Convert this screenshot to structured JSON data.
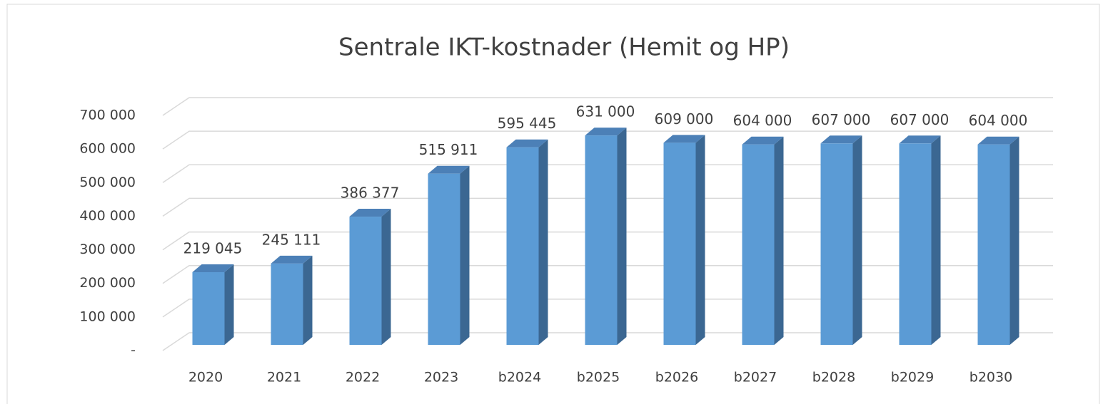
{
  "chart_data": {
    "type": "bar",
    "title": "Sentrale IKT-kostnader (Hemit og HP)",
    "categories": [
      "2020",
      "2021",
      "2022",
      "2023",
      "b2024",
      "b2025",
      "b2026",
      "b2027",
      "b2028",
      "b2029",
      "b2030"
    ],
    "values": [
      219045,
      245111,
      386377,
      515911,
      595445,
      631000,
      609000,
      604000,
      607000,
      607000,
      604000
    ],
    "value_labels": [
      "219 045",
      "245 111",
      "386 377",
      "515 911",
      "595 445",
      "631 000",
      "609 000",
      "604 000",
      "607 000",
      "607 000",
      "604 000"
    ],
    "color": "#5b9bd5",
    "ylim": [
      0,
      700000
    ],
    "yticks": [
      {
        "value": 0,
        "label": "-"
      },
      {
        "value": 100000,
        "label": "100 000"
      },
      {
        "value": 200000,
        "label": "200 000"
      },
      {
        "value": 300000,
        "label": "300 000"
      },
      {
        "value": 400000,
        "label": "400 000"
      },
      {
        "value": 500000,
        "label": "500 000"
      },
      {
        "value": 600000,
        "label": "600 000"
      },
      {
        "value": 700000,
        "label": "700 000"
      }
    ],
    "grid": true
  }
}
